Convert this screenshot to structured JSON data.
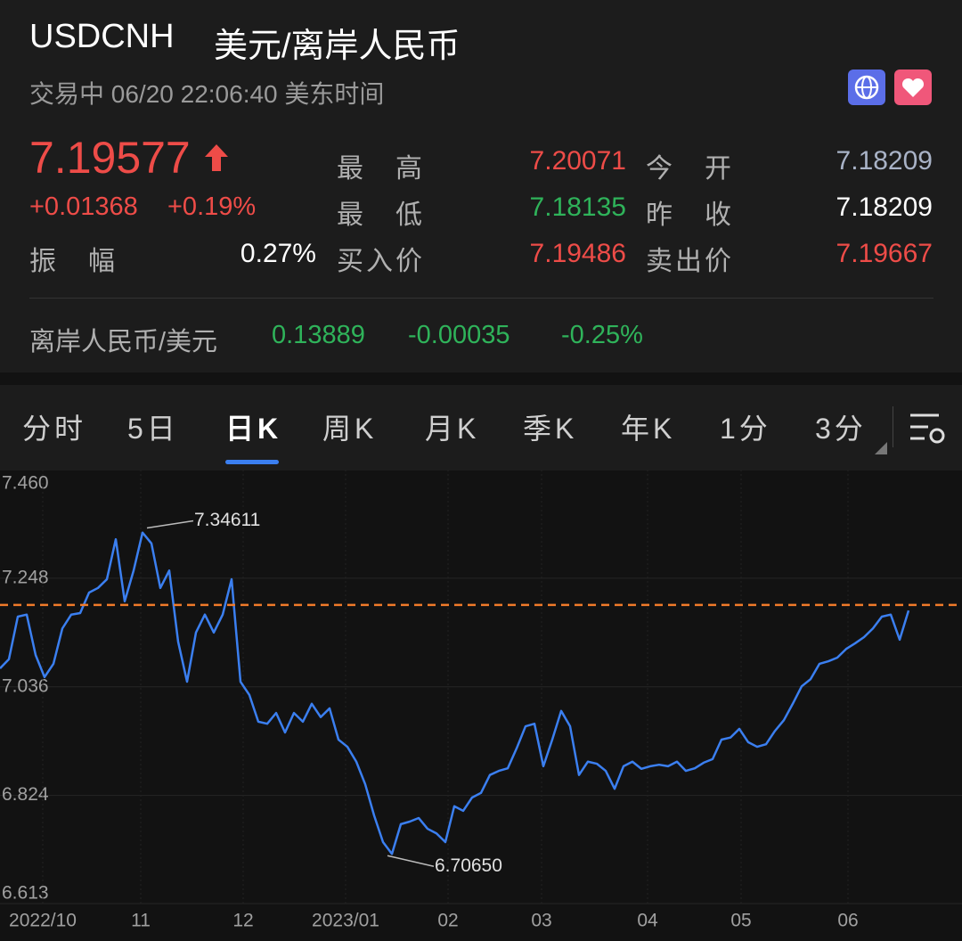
{
  "header": {
    "symbol": "USDCNH",
    "name": "美元/离岸人民币",
    "status": "交易中 06/20 22:06:40 美东时间"
  },
  "quote": {
    "price": 7.19577,
    "change": "+0.01368",
    "change_percent": "+0.19%"
  },
  "stats": [
    {
      "label": "最高",
      "value": "7.20071",
      "color": "#ee4c48"
    },
    {
      "label": "今开",
      "value": "7.18209",
      "color": "#a9b3c7"
    },
    {
      "label": "最低",
      "value": "7.18135",
      "color": "#2fb35a"
    },
    {
      "label": "昨收",
      "value": "7.18209",
      "color": "#ffffff"
    },
    {
      "label": "振幅",
      "value": "0.27%",
      "color": "#ffffff"
    },
    {
      "label": "买入价",
      "value": "7.19486",
      "color": "#ee4c48"
    },
    {
      "label": "卖出价",
      "value": "7.19667",
      "color": "#ee4c48"
    }
  ],
  "inverse": {
    "name": "离岸人民币/美元",
    "price": "0.13889",
    "change": "-0.00035",
    "change_percent": "-0.25%"
  },
  "tabs": {
    "items": [
      "分时",
      "5日",
      "日K",
      "周K",
      "月K",
      "季K",
      "年K",
      "1分",
      "3分"
    ],
    "active": 2
  },
  "chart_data": {
    "type": "line",
    "series": [
      {
        "color": "#3b7ff0",
        "values": [
          7.072,
          7.09,
          7.173,
          7.177,
          7.098,
          7.055,
          7.081,
          7.15,
          7.177,
          7.18,
          7.22,
          7.229,
          7.246,
          7.324,
          7.203,
          7.263,
          7.337,
          7.316,
          7.229,
          7.263,
          7.124,
          7.046,
          7.142,
          7.177,
          7.142,
          7.177,
          7.246,
          7.046,
          7.02,
          6.968,
          6.964,
          6.985,
          6.947,
          6.985,
          6.968,
          7.003,
          6.977,
          6.994,
          6.933,
          6.919,
          6.89,
          6.846,
          6.785,
          6.733,
          6.71,
          6.768,
          6.773,
          6.78,
          6.759,
          6.75,
          6.733,
          6.803,
          6.794,
          6.82,
          6.829,
          6.864,
          6.872,
          6.877,
          6.916,
          6.959,
          6.964,
          6.881,
          6.933,
          6.989,
          6.959,
          6.864,
          6.89,
          6.886,
          6.872,
          6.837,
          6.881,
          6.89,
          6.876,
          6.881,
          6.884,
          6.881,
          6.89,
          6.872,
          6.877,
          6.888,
          6.895,
          6.933,
          6.937,
          6.954,
          6.928,
          6.919,
          6.924,
          6.95,
          6.971,
          7.003,
          7.037,
          7.051,
          7.081,
          7.086,
          7.093,
          7.11,
          7.121,
          7.133,
          7.15,
          7.173,
          7.177,
          7.128,
          7.185
        ]
      }
    ],
    "xlim": [
      0,
      108
    ],
    "xticks": [
      {
        "value": 4.8,
        "label": "2022/10"
      },
      {
        "value": 15.8,
        "label": "11"
      },
      {
        "value": 27.3,
        "label": "12"
      },
      {
        "value": 38.8,
        "label": "2023/01"
      },
      {
        "value": 50.3,
        "label": "02"
      },
      {
        "value": 60.8,
        "label": "03"
      },
      {
        "value": 72.7,
        "label": "04"
      },
      {
        "value": 83.2,
        "label": "05"
      },
      {
        "value": 95.2,
        "label": "06"
      }
    ],
    "ylim": [
      6.613,
      7.46
    ],
    "yticks": [
      {
        "value": 7.46,
        "label": "7.460"
      },
      7.248,
      7.036,
      6.824,
      6.613
    ],
    "annotations": [
      {
        "x": 16.5,
        "value": 7.34611,
        "label": "7.34611"
      },
      {
        "x": 43.5,
        "value": 6.7065,
        "label": "6.70650"
      }
    ],
    "grid": true,
    "reference_line_color": "#f07a2a"
  }
}
